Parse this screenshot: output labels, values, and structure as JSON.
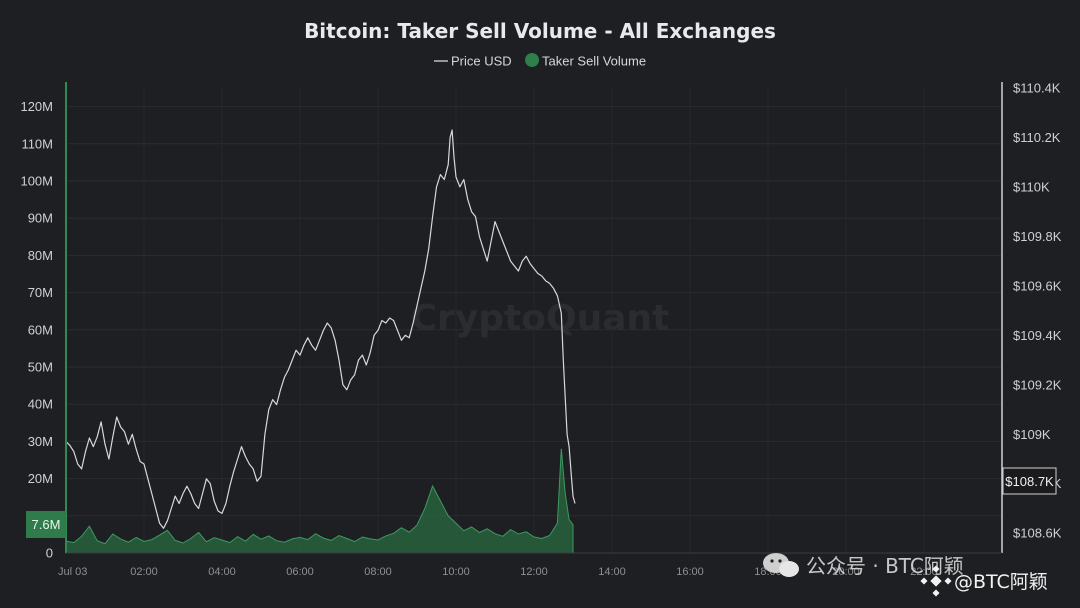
{
  "chart_data": {
    "type": "line",
    "title": "Bitcoin: Taker Sell Volume - All Exchanges",
    "legend": [
      "Price USD",
      "Taker Sell Volume"
    ],
    "legend_position": "top-center",
    "grid": true,
    "x_ticks": [
      "Jul 03",
      "02:00",
      "04:00",
      "06:00",
      "08:00",
      "10:00",
      "12:00",
      "14:00",
      "16:00",
      "18:00",
      "20:00",
      "22:00"
    ],
    "x_range_hours": [
      0,
      24
    ],
    "y_left": {
      "ticks": [
        "0",
        "10M",
        "20M",
        "30M",
        "40M",
        "50M",
        "60M",
        "70M",
        "80M",
        "90M",
        "100M",
        "110M",
        "120M"
      ],
      "range": [
        0,
        125000000
      ]
    },
    "y_right": {
      "ticks": [
        "$108.6K",
        "$108.8K",
        "$109K",
        "$109.2K",
        "$109.4K",
        "$109.6K",
        "$109.8K",
        "$110K",
        "$110.2K",
        "$110.4K"
      ],
      "range": [
        108520,
        110400
      ]
    },
    "current_volume_label": "7.6M",
    "current_volume": 7600000,
    "current_price_label": "$108.7K",
    "current_price": 108700,
    "series": [
      {
        "name": "Price USD",
        "color": "#d8d8dc",
        "points": [
          [
            0,
            108970
          ],
          [
            0.1,
            108955
          ],
          [
            0.2,
            108930
          ],
          [
            0.3,
            108880
          ],
          [
            0.4,
            108860
          ],
          [
            0.5,
            108930
          ],
          [
            0.6,
            108985
          ],
          [
            0.7,
            108950
          ],
          [
            0.8,
            108990
          ],
          [
            0.9,
            109050
          ],
          [
            1.0,
            108960
          ],
          [
            1.1,
            108900
          ],
          [
            1.2,
            108990
          ],
          [
            1.3,
            109070
          ],
          [
            1.4,
            109030
          ],
          [
            1.5,
            109010
          ],
          [
            1.6,
            108960
          ],
          [
            1.7,
            109000
          ],
          [
            1.8,
            108940
          ],
          [
            1.9,
            108890
          ],
          [
            2.0,
            108880
          ],
          [
            2.1,
            108820
          ],
          [
            2.2,
            108760
          ],
          [
            2.3,
            108700
          ],
          [
            2.4,
            108640
          ],
          [
            2.5,
            108620
          ],
          [
            2.6,
            108650
          ],
          [
            2.7,
            108700
          ],
          [
            2.8,
            108750
          ],
          [
            2.9,
            108720
          ],
          [
            3.0,
            108760
          ],
          [
            3.1,
            108790
          ],
          [
            3.2,
            108760
          ],
          [
            3.3,
            108720
          ],
          [
            3.4,
            108700
          ],
          [
            3.5,
            108760
          ],
          [
            3.6,
            108820
          ],
          [
            3.7,
            108800
          ],
          [
            3.8,
            108730
          ],
          [
            3.9,
            108690
          ],
          [
            4.0,
            108680
          ],
          [
            4.1,
            108720
          ],
          [
            4.2,
            108790
          ],
          [
            4.3,
            108850
          ],
          [
            4.4,
            108900
          ],
          [
            4.5,
            108950
          ],
          [
            4.6,
            108910
          ],
          [
            4.7,
            108880
          ],
          [
            4.8,
            108860
          ],
          [
            4.9,
            108810
          ],
          [
            5.0,
            108830
          ],
          [
            5.1,
            109000
          ],
          [
            5.2,
            109100
          ],
          [
            5.3,
            109140
          ],
          [
            5.4,
            109120
          ],
          [
            5.5,
            109180
          ],
          [
            5.6,
            109230
          ],
          [
            5.7,
            109260
          ],
          [
            5.8,
            109300
          ],
          [
            5.9,
            109340
          ],
          [
            6.0,
            109320
          ],
          [
            6.1,
            109360
          ],
          [
            6.2,
            109390
          ],
          [
            6.3,
            109360
          ],
          [
            6.4,
            109340
          ],
          [
            6.5,
            109380
          ],
          [
            6.6,
            109420
          ],
          [
            6.7,
            109450
          ],
          [
            6.8,
            109430
          ],
          [
            6.9,
            109380
          ],
          [
            7.0,
            109300
          ],
          [
            7.1,
            109200
          ],
          [
            7.2,
            109180
          ],
          [
            7.3,
            109220
          ],
          [
            7.4,
            109240
          ],
          [
            7.5,
            109300
          ],
          [
            7.6,
            109320
          ],
          [
            7.7,
            109280
          ],
          [
            7.8,
            109330
          ],
          [
            7.9,
            109400
          ],
          [
            8.0,
            109420
          ],
          [
            8.1,
            109460
          ],
          [
            8.2,
            109450
          ],
          [
            8.3,
            109470
          ],
          [
            8.4,
            109460
          ],
          [
            8.5,
            109420
          ],
          [
            8.6,
            109380
          ],
          [
            8.7,
            109400
          ],
          [
            8.8,
            109390
          ],
          [
            8.9,
            109450
          ],
          [
            9.0,
            109520
          ],
          [
            9.1,
            109590
          ],
          [
            9.2,
            109660
          ],
          [
            9.3,
            109750
          ],
          [
            9.4,
            109880
          ],
          [
            9.5,
            110000
          ],
          [
            9.6,
            110050
          ],
          [
            9.7,
            110030
          ],
          [
            9.8,
            110090
          ],
          [
            9.85,
            110200
          ],
          [
            9.9,
            110230
          ],
          [
            9.95,
            110120
          ],
          [
            10.0,
            110040
          ],
          [
            10.1,
            110000
          ],
          [
            10.2,
            110030
          ],
          [
            10.3,
            109950
          ],
          [
            10.4,
            109900
          ],
          [
            10.5,
            109880
          ],
          [
            10.6,
            109800
          ],
          [
            10.7,
            109750
          ],
          [
            10.8,
            109700
          ],
          [
            10.9,
            109780
          ],
          [
            11.0,
            109860
          ],
          [
            11.1,
            109820
          ],
          [
            11.2,
            109780
          ],
          [
            11.3,
            109740
          ],
          [
            11.4,
            109700
          ],
          [
            11.5,
            109680
          ],
          [
            11.6,
            109660
          ],
          [
            11.7,
            109700
          ],
          [
            11.8,
            109720
          ],
          [
            11.9,
            109690
          ],
          [
            12.0,
            109670
          ],
          [
            12.1,
            109650
          ],
          [
            12.2,
            109640
          ],
          [
            12.3,
            109620
          ],
          [
            12.4,
            109610
          ],
          [
            12.5,
            109590
          ],
          [
            12.6,
            109560
          ],
          [
            12.7,
            109490
          ],
          [
            12.75,
            109300
          ],
          [
            12.8,
            109150
          ],
          [
            12.85,
            109000
          ],
          [
            12.9,
            108950
          ],
          [
            12.95,
            108850
          ],
          [
            13.0,
            108750
          ],
          [
            13.05,
            108720
          ]
        ]
      },
      {
        "name": "Taker Sell Volume",
        "color": "#3d8f5a",
        "points": [
          [
            0,
            3200000
          ],
          [
            0.2,
            2800000
          ],
          [
            0.4,
            4500000
          ],
          [
            0.6,
            7200000
          ],
          [
            0.8,
            3300000
          ],
          [
            1.0,
            2500000
          ],
          [
            1.2,
            5100000
          ],
          [
            1.4,
            3800000
          ],
          [
            1.6,
            2900000
          ],
          [
            1.8,
            4200000
          ],
          [
            2.0,
            3100000
          ],
          [
            2.2,
            3600000
          ],
          [
            2.4,
            4800000
          ],
          [
            2.6,
            6100000
          ],
          [
            2.8,
            3400000
          ],
          [
            3.0,
            2700000
          ],
          [
            3.2,
            3900000
          ],
          [
            3.4,
            5500000
          ],
          [
            3.6,
            3000000
          ],
          [
            3.8,
            4100000
          ],
          [
            4.0,
            3500000
          ],
          [
            4.2,
            2800000
          ],
          [
            4.4,
            4400000
          ],
          [
            4.6,
            3200000
          ],
          [
            4.8,
            5000000
          ],
          [
            5.0,
            3700000
          ],
          [
            5.2,
            4600000
          ],
          [
            5.4,
            3300000
          ],
          [
            5.6,
            2900000
          ],
          [
            5.8,
            3800000
          ],
          [
            6.0,
            4200000
          ],
          [
            6.2,
            3600000
          ],
          [
            6.4,
            5200000
          ],
          [
            6.6,
            4000000
          ],
          [
            6.8,
            3400000
          ],
          [
            7.0,
            4700000
          ],
          [
            7.2,
            3900000
          ],
          [
            7.4,
            3100000
          ],
          [
            7.6,
            4300000
          ],
          [
            7.8,
            3800000
          ],
          [
            8.0,
            3500000
          ],
          [
            8.2,
            4600000
          ],
          [
            8.4,
            5300000
          ],
          [
            8.6,
            6800000
          ],
          [
            8.8,
            5600000
          ],
          [
            9.0,
            7500000
          ],
          [
            9.2,
            12000000
          ],
          [
            9.4,
            18000000
          ],
          [
            9.6,
            14000000
          ],
          [
            9.8,
            10000000
          ],
          [
            10.0,
            8000000
          ],
          [
            10.2,
            6000000
          ],
          [
            10.4,
            7000000
          ],
          [
            10.6,
            5500000
          ],
          [
            10.8,
            6500000
          ],
          [
            11.0,
            5200000
          ],
          [
            11.2,
            4500000
          ],
          [
            11.4,
            6300000
          ],
          [
            11.6,
            5100000
          ],
          [
            11.8,
            5700000
          ],
          [
            12.0,
            4300000
          ],
          [
            12.2,
            3900000
          ],
          [
            12.4,
            4700000
          ],
          [
            12.6,
            8000000
          ],
          [
            12.7,
            28000000
          ],
          [
            12.8,
            16000000
          ],
          [
            12.9,
            9000000
          ],
          [
            13.0,
            7600000
          ]
        ]
      }
    ]
  },
  "watermark": "CryptoQuant",
  "footer": {
    "wechat_text": "公众号 · BTC阿颖",
    "handle": "@BTC阿颖"
  }
}
